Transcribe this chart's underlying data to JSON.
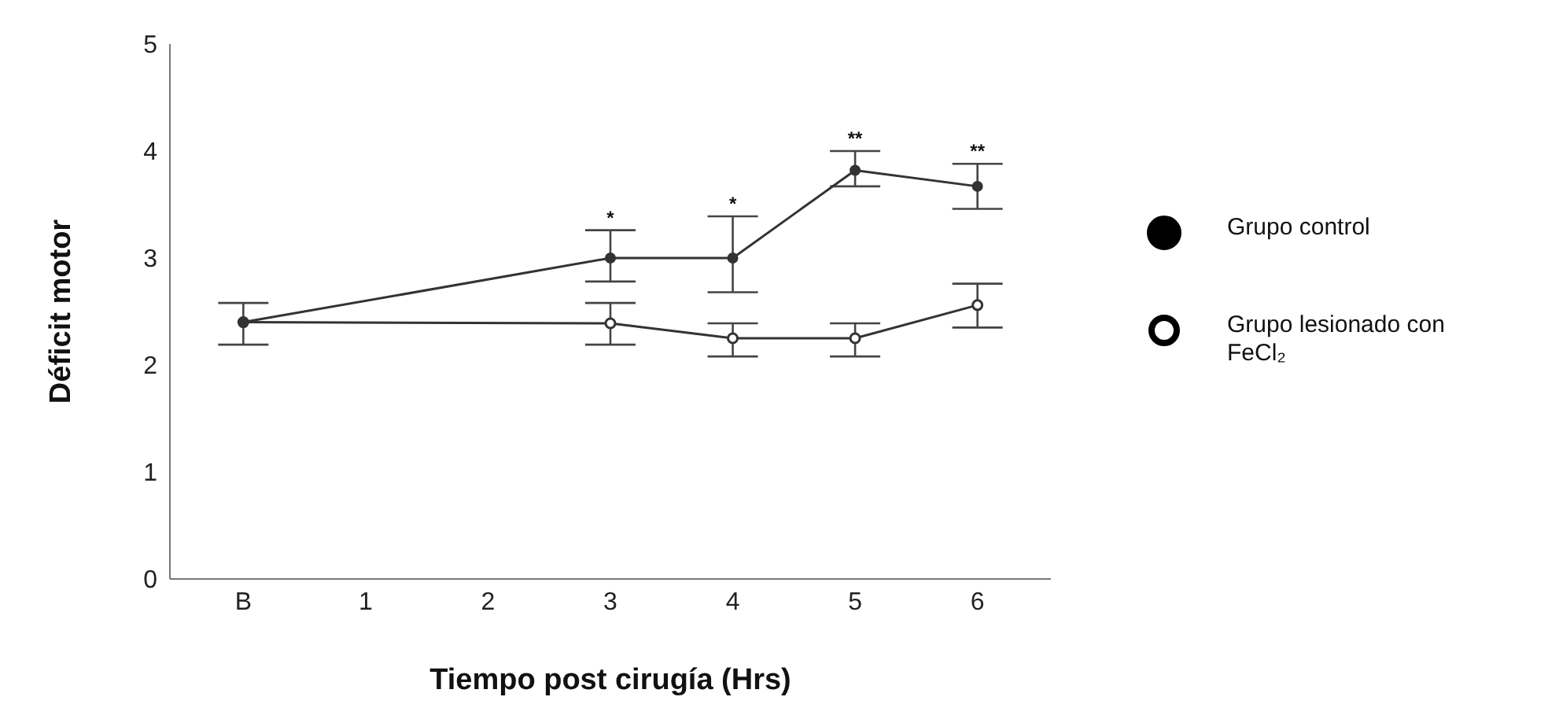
{
  "chart_data": {
    "type": "line",
    "xlabel": "Tiempo post cirugía (Hrs)",
    "ylabel": "Déficit motor",
    "categories": [
      "B",
      "1",
      "2",
      "3",
      "4",
      "5",
      "6"
    ],
    "series": [
      {
        "name": "Grupo control",
        "color": "#333333",
        "values": [
          2.4,
          null,
          null,
          3.0,
          3.0,
          3.82,
          3.67
        ],
        "errors": [
          [
            2.19,
            2.58
          ],
          null,
          null,
          [
            2.78,
            3.26
          ],
          [
            2.68,
            3.39
          ],
          [
            3.67,
            4.0
          ],
          [
            3.46,
            3.88
          ]
        ]
      },
      {
        "name": "Grupo lesionado con FeCl₂",
        "color": "#333333",
        "values": [
          2.4,
          null,
          null,
          2.39,
          2.25,
          2.25,
          2.56
        ],
        "errors": [
          null,
          null,
          null,
          [
            2.19,
            2.58
          ],
          [
            2.08,
            2.39
          ],
          [
            2.08,
            2.39
          ],
          [
            2.35,
            2.76
          ]
        ]
      }
    ],
    "ylim": [
      0,
      5
    ],
    "yticks": [
      0,
      1,
      2,
      3,
      4,
      5
    ],
    "grid": false,
    "legend": "right",
    "marker": "circle",
    "line_style": "solid",
    "annotations": [
      "*",
      "*",
      "**",
      "**"
    ]
  }
}
